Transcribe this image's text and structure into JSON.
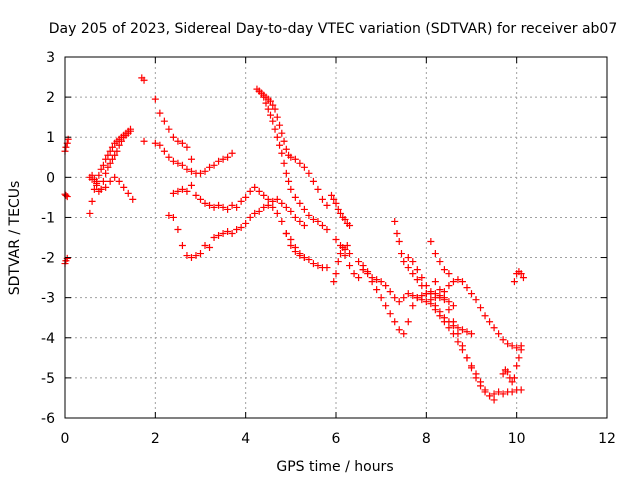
{
  "chart_data": {
    "type": "scatter",
    "title": "Day 205 of 2023, Sidereal Day-to-day VTEC variation (SDTVAR) for receiver ab07",
    "xlabel": "GPS time / hours",
    "ylabel": "SDTVAR / TECUs",
    "xlim": [
      0,
      12
    ],
    "ylim": [
      -6,
      3
    ],
    "xticks": [
      0,
      2,
      4,
      6,
      8,
      10,
      12
    ],
    "yticks": [
      -6,
      -5,
      -4,
      -3,
      -2,
      -1,
      0,
      1,
      2,
      3
    ],
    "grid": true,
    "marker": "+",
    "color": "#ff0000",
    "series": [
      {
        "x": [
          0.0,
          0.02,
          0.05,
          0.07
        ],
        "y": [
          0.65,
          0.75,
          0.85,
          0.95
        ]
      },
      {
        "x": [
          0.0,
          0.02,
          0.05
        ],
        "y": [
          -0.42,
          -0.45,
          -0.48
        ]
      },
      {
        "x": [
          0.0,
          0.02,
          0.05
        ],
        "y": [
          -2.15,
          -2.08,
          -2.02
        ]
      },
      {
        "x": [
          0.55,
          0.6,
          0.65,
          0.7,
          0.75,
          0.8,
          0.85,
          0.9,
          0.95,
          1.0,
          1.05,
          1.1,
          1.15,
          1.2,
          1.25,
          1.3,
          1.35,
          1.4,
          1.45
        ],
        "y": [
          -0.9,
          -0.6,
          -0.3,
          -0.1,
          0.05,
          0.2,
          0.3,
          0.45,
          0.55,
          0.65,
          0.75,
          0.85,
          0.9,
          0.95,
          1.0,
          1.05,
          1.1,
          1.15,
          1.2
        ]
      },
      {
        "x": [
          0.55,
          0.6,
          0.65,
          0.7,
          0.75,
          0.8,
          0.85,
          0.9,
          0.95,
          1.0,
          1.05,
          1.1,
          1.15,
          1.2,
          1.25,
          1.3,
          1.35,
          1.4,
          1.45
        ],
        "y": [
          0.0,
          0.05,
          -0.05,
          -0.2,
          -0.35,
          -0.3,
          -0.1,
          0.1,
          0.25,
          0.35,
          0.45,
          0.55,
          0.65,
          0.8,
          0.9,
          1.0,
          1.05,
          1.1,
          1.15
        ]
      },
      {
        "x": [
          0.6,
          0.7,
          0.8,
          0.9,
          1.0,
          1.1,
          1.2,
          1.3,
          1.4,
          1.5
        ],
        "y": [
          -0.05,
          -0.15,
          -0.3,
          -0.25,
          -0.1,
          0.0,
          -0.1,
          -0.25,
          -0.4,
          -0.55
        ]
      },
      {
        "x": [
          1.7,
          1.75
        ],
        "y": [
          2.48,
          2.42
        ]
      },
      {
        "x": [
          1.75
        ],
        "y": [
          0.9
        ]
      },
      {
        "x": [
          2.0,
          2.1,
          2.2,
          2.3,
          2.4,
          2.5,
          2.6,
          2.7,
          2.8,
          2.9,
          3.0,
          3.1,
          3.2,
          3.3,
          3.4,
          3.5,
          3.6,
          3.7
        ],
        "y": [
          0.85,
          0.8,
          0.65,
          0.5,
          0.4,
          0.35,
          0.3,
          0.2,
          0.15,
          0.1,
          0.1,
          0.15,
          0.25,
          0.3,
          0.4,
          0.45,
          0.5,
          0.6
        ]
      },
      {
        "x": [
          2.0,
          2.1,
          2.2,
          2.3,
          2.4,
          2.5,
          2.6,
          2.7,
          2.8
        ],
        "y": [
          1.95,
          1.6,
          1.4,
          1.2,
          1.0,
          0.9,
          0.85,
          0.75,
          0.45
        ]
      },
      {
        "x": [
          2.4,
          2.5,
          2.6,
          2.7,
          2.8,
          2.9,
          3.0,
          3.1,
          3.2,
          3.3,
          3.4,
          3.5,
          3.6,
          3.7,
          3.8,
          3.9,
          4.0,
          4.1,
          4.2,
          4.3,
          4.4,
          4.5,
          4.6,
          4.7,
          4.8,
          4.9,
          5.0,
          5.1,
          5.2,
          5.3
        ],
        "y": [
          -0.4,
          -0.35,
          -0.3,
          -0.35,
          -0.2,
          -0.45,
          -0.55,
          -0.65,
          -0.7,
          -0.75,
          -0.7,
          -0.75,
          -0.8,
          -0.7,
          -0.75,
          -0.6,
          -0.5,
          -0.35,
          -0.25,
          -0.35,
          -0.45,
          -0.55,
          -0.6,
          -0.55,
          -0.65,
          -0.75,
          -0.85,
          -1.0,
          -1.1,
          -1.2
        ]
      },
      {
        "x": [
          2.3,
          2.4,
          2.5,
          2.6,
          2.7,
          2.8,
          2.9,
          3.0,
          3.1,
          3.2,
          3.3,
          3.4,
          3.5,
          3.6,
          3.7,
          3.8,
          3.9,
          4.0,
          4.1,
          4.2,
          4.3,
          4.4,
          4.5,
          4.6,
          4.7,
          4.8,
          4.9,
          5.0,
          5.1,
          5.2,
          5.3,
          5.4,
          5.5,
          5.6,
          5.7,
          5.8
        ],
        "y": [
          -0.95,
          -1.0,
          -1.3,
          -1.7,
          -1.95,
          -2.0,
          -1.95,
          -1.9,
          -1.7,
          -1.75,
          -1.5,
          -1.45,
          -1.4,
          -1.35,
          -1.4,
          -1.3,
          -1.25,
          -1.15,
          -1.0,
          -0.9,
          -0.85,
          -0.75,
          -0.7,
          -0.75,
          -0.9,
          -1.1,
          -1.4,
          -1.7,
          -1.85,
          -1.95,
          -2.0,
          -2.05,
          -2.15,
          -2.2,
          -2.25,
          -2.25
        ]
      },
      {
        "x": [
          4.25,
          4.3,
          4.35,
          4.4,
          4.45,
          4.5,
          4.55,
          4.6,
          4.65,
          4.7,
          4.75,
          4.8,
          4.85,
          4.9,
          4.95,
          5.0,
          5.1,
          5.2,
          5.3,
          5.4,
          5.5,
          5.6,
          5.7,
          5.8
        ],
        "y": [
          2.2,
          2.15,
          2.1,
          2.0,
          1.85,
          1.7,
          1.55,
          1.4,
          1.2,
          1.0,
          0.8,
          0.6,
          0.35,
          0.1,
          -0.1,
          -0.3,
          -0.5,
          -0.65,
          -0.8,
          -0.95,
          -1.05,
          -1.1,
          -1.2,
          -1.3
        ]
      },
      {
        "x": [
          4.3,
          4.35,
          4.4,
          4.45,
          4.5,
          4.55,
          4.6,
          4.65,
          4.7,
          4.75,
          4.8,
          4.85,
          4.9,
          4.95,
          5.0,
          5.1,
          5.2,
          5.3,
          5.4,
          5.5,
          5.6,
          5.7,
          5.8
        ],
        "y": [
          2.15,
          2.1,
          2.05,
          2.0,
          1.95,
          1.9,
          1.8,
          1.7,
          1.5,
          1.3,
          1.1,
          0.9,
          0.7,
          0.55,
          0.5,
          0.45,
          0.35,
          0.25,
          0.1,
          -0.1,
          -0.3,
          -0.55,
          -0.7
        ]
      },
      {
        "x": [
          4.9,
          5.0,
          5.1,
          5.2,
          5.3
        ],
        "y": [
          -1.4,
          -1.55,
          -1.75,
          -1.9,
          -2.0
        ]
      },
      {
        "x": [
          5.9,
          5.95,
          6.0,
          6.05,
          6.1,
          6.15,
          6.2,
          6.25,
          6.3
        ],
        "y": [
          -0.45,
          -0.55,
          -0.65,
          -0.8,
          -0.9,
          -1.0,
          -1.05,
          -1.15,
          -1.2
        ]
      },
      {
        "x": [
          5.95,
          6.0,
          6.05,
          6.1,
          6.15,
          6.2,
          6.25,
          6.3
        ],
        "y": [
          -2.6,
          -2.4,
          -2.1,
          -1.9,
          -1.75,
          -1.8,
          -1.7,
          -1.9
        ]
      },
      {
        "x": [
          6.0,
          6.1,
          6.2,
          6.3,
          6.4,
          6.5,
          6.6
        ],
        "y": [
          -1.55,
          -1.7,
          -1.95,
          -2.2,
          -2.4,
          -2.5,
          -2.3
        ]
      },
      {
        "x": [
          6.5,
          6.6,
          6.7,
          6.8,
          6.9,
          7.0,
          7.1,
          7.2,
          7.3,
          7.4,
          7.5,
          7.6,
          7.7,
          7.8,
          7.9,
          8.0,
          8.1,
          8.2,
          8.3,
          8.4,
          8.5,
          8.6,
          8.7,
          8.8,
          8.9,
          9.0,
          9.1,
          9.2,
          9.3,
          9.4,
          9.5
        ],
        "y": [
          -2.1,
          -2.2,
          -2.35,
          -2.5,
          -2.55,
          -2.6,
          -2.7,
          -2.85,
          -3.0,
          -3.1,
          -3.0,
          -2.9,
          -2.95,
          -3.0,
          -3.05,
          -3.1,
          -3.15,
          -3.3,
          -3.45,
          -3.6,
          -3.75,
          -3.9,
          -4.1,
          -4.3,
          -4.5,
          -4.7,
          -4.9,
          -5.1,
          -5.3,
          -5.45,
          -5.55
        ]
      },
      {
        "x": [
          6.6,
          6.7,
          6.8,
          6.9,
          7.0,
          7.1,
          7.2,
          7.3,
          7.4,
          7.5,
          7.6,
          7.7,
          7.8,
          7.9,
          8.0,
          8.1,
          8.2,
          8.3,
          8.4,
          8.5,
          8.6
        ],
        "y": [
          -2.3,
          -2.4,
          -2.6,
          -2.8,
          -3.0,
          -3.2,
          -3.4,
          -3.6,
          -3.8,
          -3.9,
          -3.6,
          -3.2,
          -3.0,
          -2.95,
          -2.9,
          -2.85,
          -2.9,
          -3.0,
          -3.05,
          -3.1,
          -3.2
        ]
      },
      {
        "x": [
          7.3,
          7.35,
          7.4,
          7.45,
          7.5,
          7.6,
          7.7,
          7.8,
          7.9,
          8.0,
          8.1,
          8.2,
          8.3,
          8.4,
          8.5,
          8.6,
          8.7,
          8.8,
          8.9,
          9.0
        ],
        "y": [
          -1.1,
          -1.4,
          -1.6,
          -1.9,
          -2.1,
          -2.25,
          -2.4,
          -2.55,
          -2.7,
          -2.9,
          -3.05,
          -3.2,
          -3.35,
          -3.5,
          -3.6,
          -3.7,
          -3.75,
          -3.8,
          -3.85,
          -3.9
        ]
      },
      {
        "x": [
          7.6,
          7.7,
          7.8,
          7.9,
          8.0,
          8.1,
          8.2,
          8.3,
          8.4,
          8.5,
          8.6,
          8.7,
          8.8,
          8.9,
          9.0,
          9.1,
          9.2,
          9.3,
          9.4,
          9.5,
          9.6,
          9.7,
          9.8,
          9.9,
          10.0,
          10.1
        ],
        "y": [
          -2.0,
          -2.1,
          -2.3,
          -2.5,
          -2.7,
          -2.9,
          -3.0,
          -2.95,
          -2.85,
          -2.7,
          -2.6,
          -2.55,
          -2.6,
          -2.75,
          -2.9,
          -3.05,
          -3.25,
          -3.45,
          -3.6,
          -3.75,
          -3.9,
          -4.05,
          -4.15,
          -4.2,
          -4.25,
          -4.2
        ]
      },
      {
        "x": [
          8.1,
          8.2,
          8.3,
          8.4,
          8.5
        ],
        "y": [
          -1.6,
          -1.9,
          -2.1,
          -2.3,
          -2.4
        ]
      },
      {
        "x": [
          8.2,
          8.3,
          8.4,
          8.5,
          8.6,
          8.7,
          8.8,
          8.9,
          9.0,
          9.1,
          9.2,
          9.3,
          9.4,
          9.5,
          9.6,
          9.7,
          9.8,
          9.9,
          10.0,
          10.1
        ],
        "y": [
          -2.6,
          -2.8,
          -3.0,
          -3.3,
          -3.6,
          -3.9,
          -4.2,
          -4.5,
          -4.75,
          -5.0,
          -5.2,
          -5.35,
          -5.45,
          -5.4,
          -5.35,
          -5.4,
          -5.35,
          -5.35,
          -5.3,
          -5.3
        ]
      },
      {
        "x": [
          9.7,
          9.75,
          9.8,
          9.85,
          9.9,
          9.95,
          10.0,
          10.05,
          10.1
        ],
        "y": [
          -4.9,
          -4.8,
          -4.85,
          -5.0,
          -5.1,
          -5.0,
          -4.7,
          -4.5,
          -4.3
        ]
      },
      {
        "x": [
          9.95,
          10.0,
          10.05,
          10.1,
          10.15
        ],
        "y": [
          -2.6,
          -2.4,
          -2.35,
          -2.4,
          -2.5
        ]
      }
    ]
  }
}
